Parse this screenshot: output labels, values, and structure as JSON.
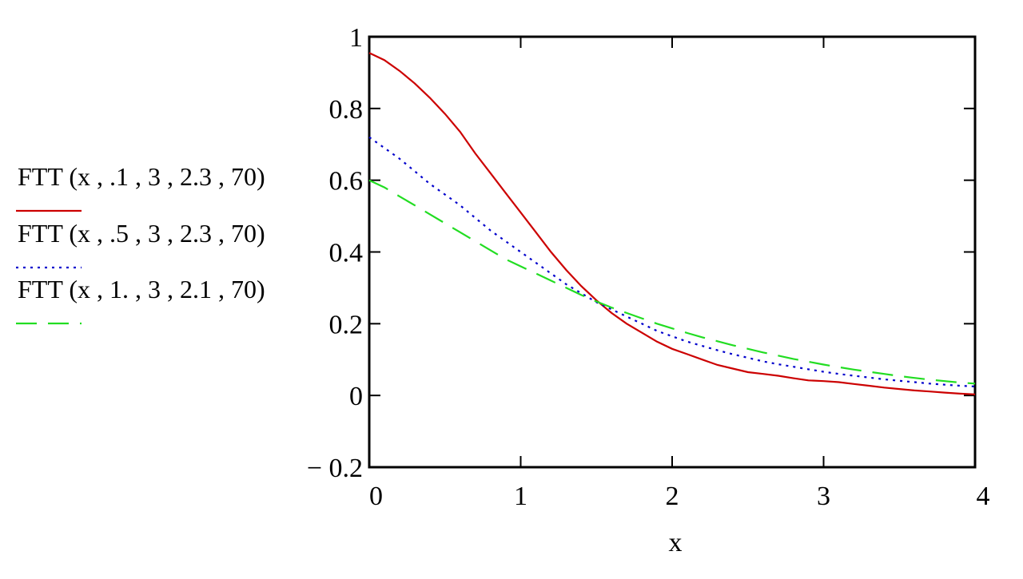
{
  "chart_data": {
    "type": "line",
    "xlabel": "x",
    "ylabel": "",
    "xlim": [
      0,
      4
    ],
    "ylim": [
      -0.2,
      1
    ],
    "x_ticks": [
      0,
      1,
      2,
      3,
      4
    ],
    "x_tick_labels": [
      "0",
      "1",
      "2",
      "3",
      "4"
    ],
    "y_ticks": [
      1,
      0.8,
      0.6,
      0.4,
      0.2,
      0,
      -0.2
    ],
    "y_tick_labels": [
      "1",
      "0.8",
      "0.6",
      "0.4",
      "0.2",
      "0",
      "− 0.2"
    ],
    "grid": false,
    "legend_position": "left",
    "series": [
      {
        "name": "FTT (x , .1 , 3 , 2.3 , 70)",
        "color": "#cc0000",
        "dash": "solid",
        "x": [
          0,
          0.1,
          0.2,
          0.3,
          0.4,
          0.5,
          0.6,
          0.7,
          0.8,
          0.9,
          1.0,
          1.1,
          1.2,
          1.3,
          1.4,
          1.5,
          1.6,
          1.7,
          1.8,
          1.9,
          2.0,
          2.1,
          2.2,
          2.3,
          2.4,
          2.5,
          2.6,
          2.7,
          2.8,
          2.9,
          3.0,
          3.1,
          3.2,
          3.3,
          3.4,
          3.5,
          3.6,
          3.7,
          3.8,
          3.9,
          4.0
        ],
        "y": [
          0.955,
          0.935,
          0.905,
          0.87,
          0.83,
          0.785,
          0.735,
          0.675,
          0.62,
          0.565,
          0.51,
          0.455,
          0.4,
          0.35,
          0.305,
          0.265,
          0.23,
          0.2,
          0.175,
          0.15,
          0.13,
          0.115,
          0.1,
          0.085,
          0.075,
          0.065,
          0.06,
          0.055,
          0.048,
          0.042,
          0.04,
          0.037,
          0.032,
          0.027,
          0.022,
          0.018,
          0.014,
          0.011,
          0.008,
          0.005,
          0.003
        ]
      },
      {
        "name": "FTT (x , .5 , 3 , 2.3 , 70)",
        "color": "#0000cc",
        "dash": "dotted",
        "x": [
          0,
          0.1,
          0.2,
          0.3,
          0.4,
          0.5,
          0.6,
          0.7,
          0.8,
          0.9,
          1.0,
          1.1,
          1.2,
          1.3,
          1.4,
          1.5,
          1.6,
          1.7,
          1.8,
          1.9,
          2.0,
          2.1,
          2.2,
          2.3,
          2.4,
          2.5,
          2.6,
          2.7,
          2.8,
          2.9,
          3.0,
          3.1,
          3.2,
          3.3,
          3.4,
          3.5,
          3.6,
          3.7,
          3.8,
          3.9,
          4.0
        ],
        "y": [
          0.72,
          0.69,
          0.66,
          0.625,
          0.59,
          0.56,
          0.53,
          0.495,
          0.46,
          0.43,
          0.4,
          0.37,
          0.34,
          0.31,
          0.285,
          0.26,
          0.24,
          0.22,
          0.2,
          0.18,
          0.165,
          0.15,
          0.138,
          0.126,
          0.115,
          0.105,
          0.095,
          0.087,
          0.08,
          0.073,
          0.066,
          0.06,
          0.055,
          0.05,
          0.045,
          0.041,
          0.037,
          0.033,
          0.03,
          0.027,
          0.025
        ]
      },
      {
        "name": "FTT (x , 1. , 3 , 2.1 , 70)",
        "color": "#22dd22",
        "dash": "dashed",
        "x": [
          0,
          0.1,
          0.2,
          0.3,
          0.4,
          0.5,
          0.6,
          0.7,
          0.8,
          0.9,
          1.0,
          1.1,
          1.2,
          1.3,
          1.4,
          1.5,
          1.6,
          1.7,
          1.8,
          1.9,
          2.0,
          2.1,
          2.2,
          2.3,
          2.4,
          2.5,
          2.6,
          2.7,
          2.8,
          2.9,
          3.0,
          3.1,
          3.2,
          3.3,
          3.4,
          3.5,
          3.6,
          3.7,
          3.8,
          3.9,
          4.0
        ],
        "y": [
          0.6,
          0.58,
          0.555,
          0.53,
          0.505,
          0.48,
          0.455,
          0.43,
          0.405,
          0.38,
          0.36,
          0.34,
          0.32,
          0.3,
          0.28,
          0.262,
          0.245,
          0.23,
          0.215,
          0.2,
          0.187,
          0.174,
          0.162,
          0.151,
          0.14,
          0.13,
          0.12,
          0.111,
          0.102,
          0.094,
          0.086,
          0.079,
          0.072,
          0.066,
          0.06,
          0.054,
          0.049,
          0.044,
          0.04,
          0.036,
          0.033
        ]
      }
    ]
  }
}
